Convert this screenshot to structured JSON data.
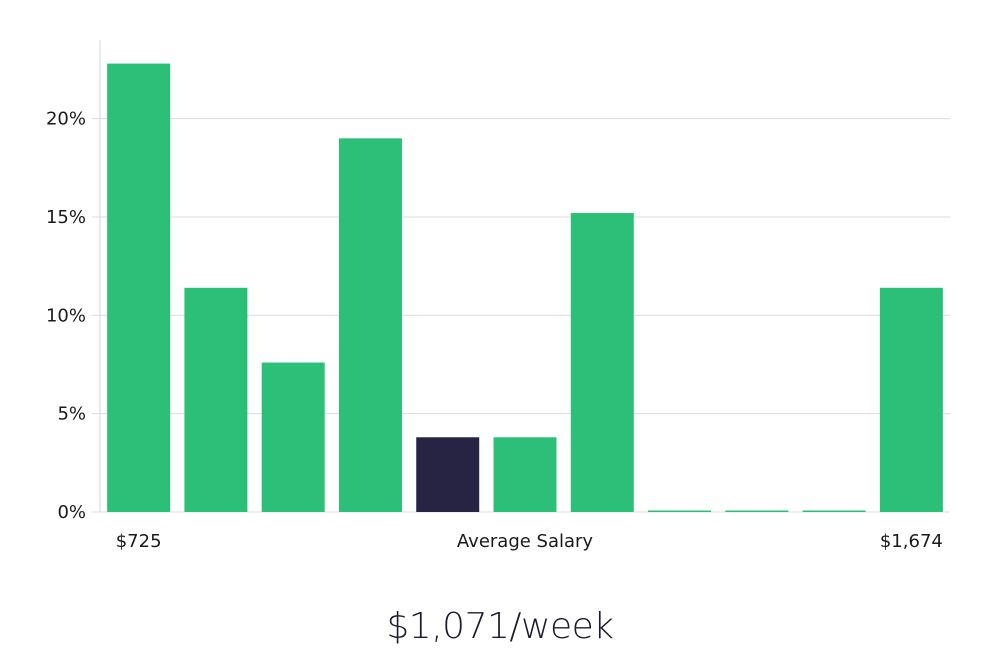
{
  "chart_data": {
    "type": "bar",
    "categories": [
      "",
      "",
      "",
      "",
      "",
      "",
      "",
      "",
      "",
      "",
      ""
    ],
    "values": [
      22.8,
      11.4,
      7.6,
      19.0,
      3.8,
      3.8,
      15.2,
      0,
      0,
      0,
      11.4
    ],
    "highlight_index": 4,
    "ylim": [
      0,
      24
    ],
    "yticks": [
      {
        "value": 0,
        "label": "0%"
      },
      {
        "value": 5,
        "label": "5%"
      },
      {
        "value": 10,
        "label": "10%"
      },
      {
        "value": 15,
        "label": "15%"
      },
      {
        "value": 20,
        "label": "20%"
      }
    ],
    "x_labels": {
      "left": "$725",
      "center": "Average Salary",
      "right": "$1,674"
    },
    "grid": true,
    "colors": {
      "bar": "#2bbf78",
      "highlight": "#262442",
      "grid": "#dcdcdc"
    }
  },
  "headline": "$1,071/week"
}
